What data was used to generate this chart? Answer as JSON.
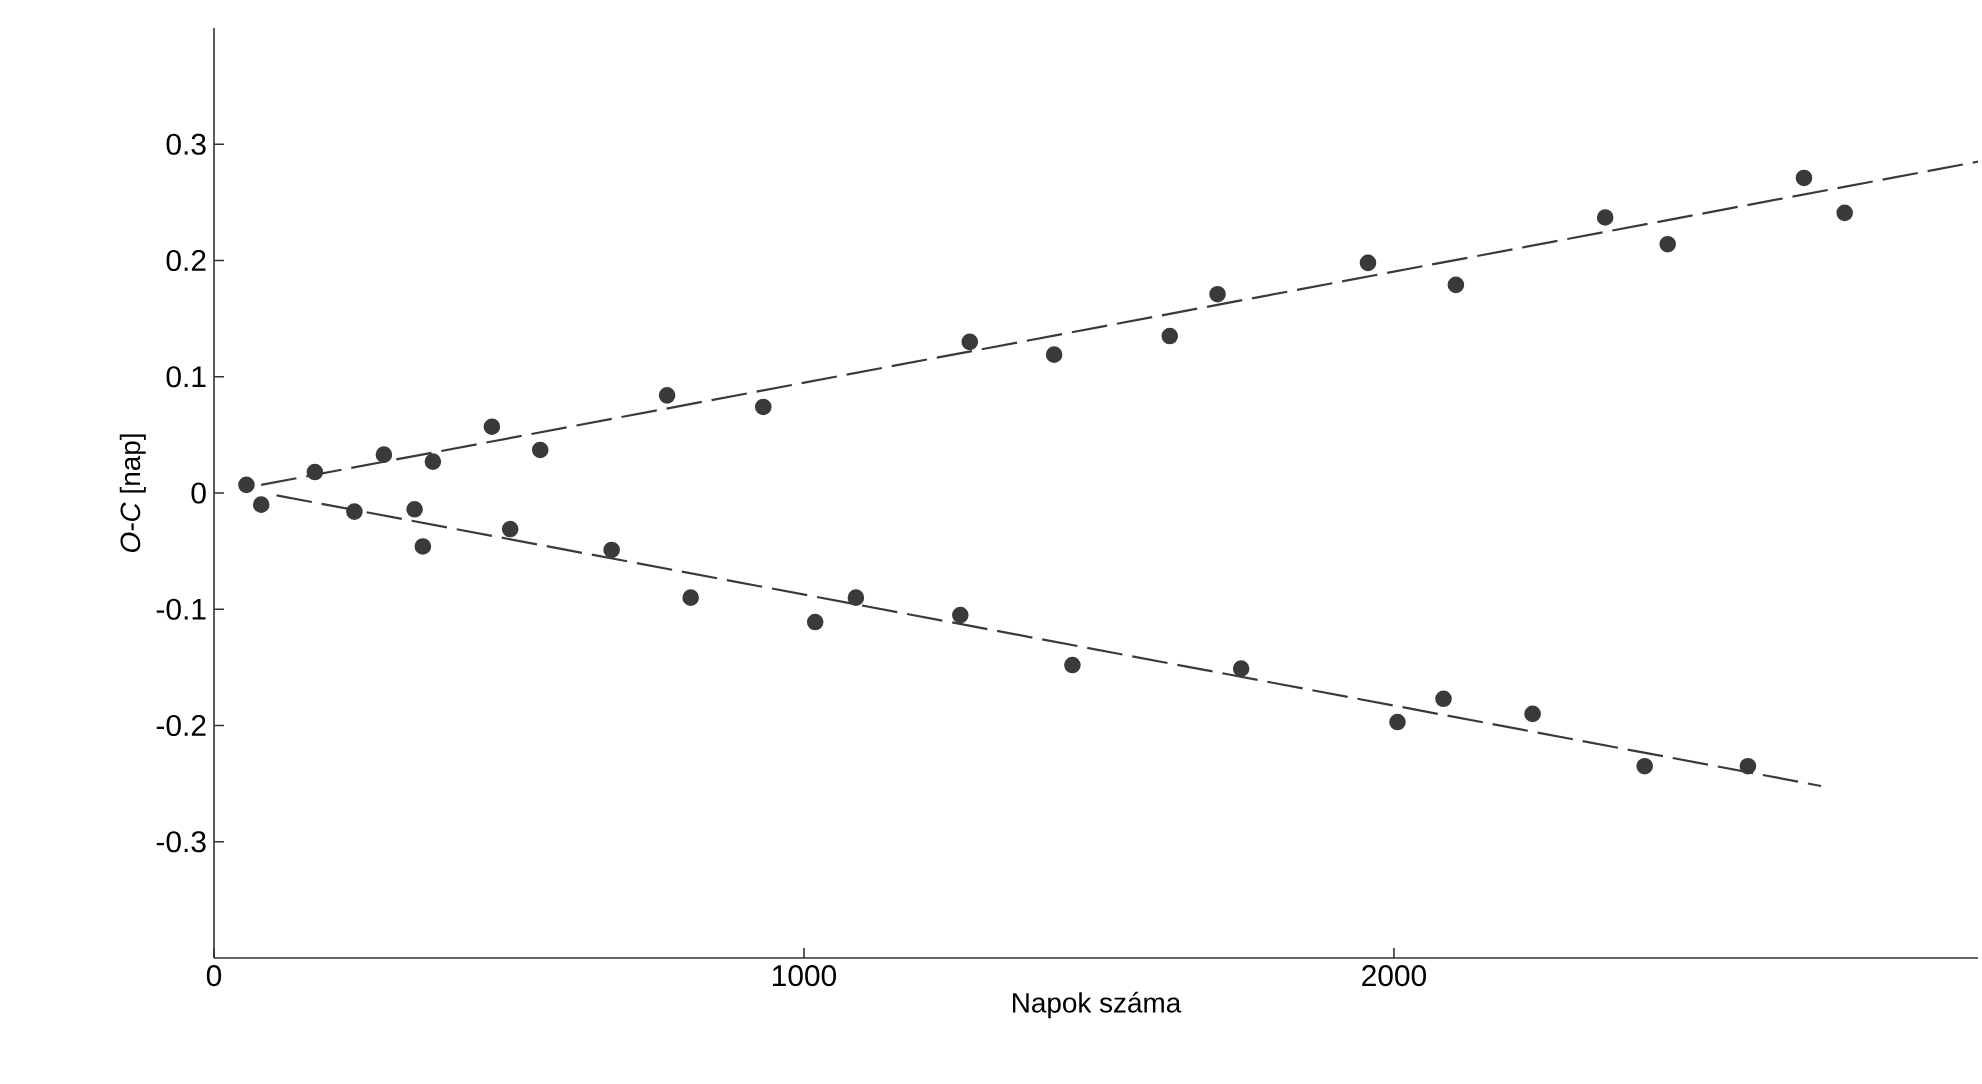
{
  "chart_data": {
    "type": "scatter",
    "xlabel": "Napok száma",
    "ylabel": "*O-C* [nap]",
    "xlim": [
      0,
      2990
    ],
    "ylim": [
      -0.4,
      0.4
    ],
    "xticks": [
      0,
      1000,
      2000
    ],
    "yticks": [
      -0.3,
      -0.2,
      -0.1,
      0,
      0.1,
      0.2,
      0.3
    ],
    "grid": false,
    "series": [
      {
        "marker": "circle",
        "color": "#3a3a3a",
        "x": [
          55,
          171,
          288,
          371,
          471,
          553,
          768,
          931,
          1281,
          1424,
          1620,
          1701,
          1956,
          2105,
          2358,
          2464,
          2695,
          2764
        ],
        "values": [
          0.007,
          0.018,
          0.033,
          0.027,
          0.057,
          0.037,
          0.084,
          0.074,
          0.13,
          0.119,
          0.135,
          0.171,
          0.198,
          0.179,
          0.237,
          0.214,
          0.271,
          0.241
        ]
      },
      {
        "marker": "circle",
        "color": "#3a3a3a",
        "x": [
          80,
          238,
          340,
          354,
          502,
          674,
          808,
          1019,
          1088,
          1265,
          1455,
          1741,
          2006,
          2084,
          2235,
          2425,
          2600
        ],
        "values": [
          -0.01,
          -0.016,
          -0.014,
          -0.046,
          -0.031,
          -0.049,
          -0.09,
          -0.111,
          -0.09,
          -0.105,
          -0.148,
          -0.151,
          -0.197,
          -0.177,
          -0.19,
          -0.235,
          -0.235
        ]
      },
      {
        "type": "line",
        "marker": "none",
        "line_style": "dashed",
        "color": "#3a3a3a",
        "x": [
          80,
          2990
        ],
        "values": [
          0.007,
          0.285
        ]
      },
      {
        "type": "line",
        "marker": "none",
        "line_style": "dashed",
        "color": "#3a3a3a",
        "x": [
          106,
          2724
        ],
        "values": [
          -0.002,
          -0.252
        ]
      }
    ]
  }
}
